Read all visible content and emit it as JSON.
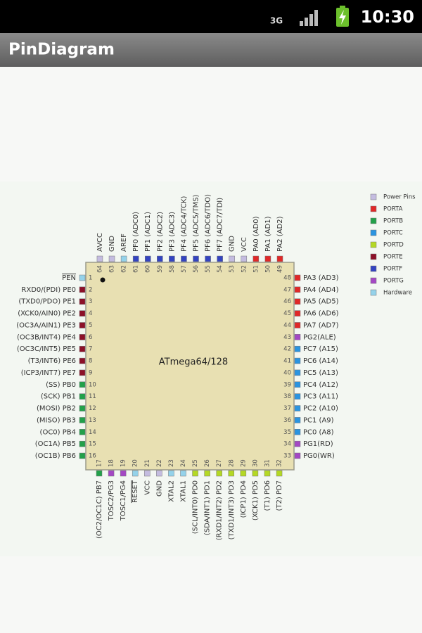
{
  "status_bar": {
    "network": "3G",
    "time": "10:30"
  },
  "app_bar": {
    "title": "PinDiagram"
  },
  "diagram": {
    "chip_label": "ATmega64/128",
    "legend": [
      {
        "name": "Power Pins",
        "color": "#c4bce0"
      },
      {
        "name": "PORTA",
        "color": "#e02828"
      },
      {
        "name": "PORTB",
        "color": "#22a04a"
      },
      {
        "name": "PORTC",
        "color": "#2a94e0"
      },
      {
        "name": "PORTD",
        "color": "#b4d824"
      },
      {
        "name": "PORTE",
        "color": "#8c1028"
      },
      {
        "name": "PORTF",
        "color": "#3444c0"
      },
      {
        "name": "PORTG",
        "color": "#a448c4"
      },
      {
        "name": "Hardware",
        "color": "#94d2ea"
      }
    ],
    "left_pins": [
      {
        "number": 1,
        "label": "PEN",
        "color": "#94d2ea"
      },
      {
        "number": 2,
        "label": "RXD0/(PDI) PE0",
        "color": "#8c1028"
      },
      {
        "number": 3,
        "label": "(TXD0/PDO) PE1",
        "color": "#8c1028"
      },
      {
        "number": 4,
        "label": "(XCK0/AIN0) PE2",
        "color": "#8c1028"
      },
      {
        "number": 5,
        "label": "(OC3A/AIN1) PE3",
        "color": "#8c1028"
      },
      {
        "number": 6,
        "label": "(OC3B/INT4) PE4",
        "color": "#8c1028"
      },
      {
        "number": 7,
        "label": "(OC3C/INT5) PE5",
        "color": "#8c1028"
      },
      {
        "number": 8,
        "label": "(T3/INT6) PE6",
        "color": "#8c1028"
      },
      {
        "number": 9,
        "label": "(ICP3/INT7) PE7",
        "color": "#8c1028"
      },
      {
        "number": 10,
        "label": "(SS) PB0",
        "color": "#22a04a"
      },
      {
        "number": 11,
        "label": "(SCK) PB1",
        "color": "#22a04a"
      },
      {
        "number": 12,
        "label": "(MOSI) PB2",
        "color": "#22a04a"
      },
      {
        "number": 13,
        "label": "(MISO) PB3",
        "color": "#22a04a"
      },
      {
        "number": 14,
        "label": "(OC0) PB4",
        "color": "#22a04a"
      },
      {
        "number": 15,
        "label": "(OC1A) PB5",
        "color": "#22a04a"
      },
      {
        "number": 16,
        "label": "(OC1B) PB6",
        "color": "#22a04a"
      }
    ],
    "bottom_pins": [
      {
        "number": 17,
        "label": "(OC2/OC1C) PB7",
        "color": "#22a04a"
      },
      {
        "number": 18,
        "label": "TOSC2/PG3",
        "color": "#a448c4"
      },
      {
        "number": 19,
        "label": "TOSC1/PG4",
        "color": "#a448c4"
      },
      {
        "number": 20,
        "label": "RESET",
        "color": "#94d2ea"
      },
      {
        "number": 21,
        "label": "VCC",
        "color": "#c4bce0"
      },
      {
        "number": 22,
        "label": "GND",
        "color": "#c4bce0"
      },
      {
        "number": 23,
        "label": "XTAL2",
        "color": "#94d2ea"
      },
      {
        "number": 24,
        "label": "XTAL1",
        "color": "#94d2ea"
      },
      {
        "number": 25,
        "label": "(SCL/INT0) PD0",
        "color": "#b4d824"
      },
      {
        "number": 26,
        "label": "(SDA/INT1) PD1",
        "color": "#b4d824"
      },
      {
        "number": 27,
        "label": "(RXD1/INT2) PD2",
        "color": "#b4d824"
      },
      {
        "number": 28,
        "label": "(TXD1/INT3) PD3",
        "color": "#b4d824"
      },
      {
        "number": 29,
        "label": "(ICP1) PD4",
        "color": "#b4d824"
      },
      {
        "number": 30,
        "label": "(XCK1) PD5",
        "color": "#b4d824"
      },
      {
        "number": 31,
        "label": "(T1) PD6",
        "color": "#b4d824"
      },
      {
        "number": 32,
        "label": "(T2) PD7",
        "color": "#b4d824"
      }
    ],
    "right_pins": [
      {
        "number": 33,
        "label": "PG0(WR)",
        "color": "#a448c4"
      },
      {
        "number": 34,
        "label": "PG1(RD)",
        "color": "#a448c4"
      },
      {
        "number": 35,
        "label": "PC0 (A8)",
        "color": "#2a94e0"
      },
      {
        "number": 36,
        "label": "PC1 (A9)",
        "color": "#2a94e0"
      },
      {
        "number": 37,
        "label": "PC2 (A10)",
        "color": "#2a94e0"
      },
      {
        "number": 38,
        "label": "PC3 (A11)",
        "color": "#2a94e0"
      },
      {
        "number": 39,
        "label": "PC4 (A12)",
        "color": "#2a94e0"
      },
      {
        "number": 40,
        "label": "PC5 (A13)",
        "color": "#2a94e0"
      },
      {
        "number": 41,
        "label": "PC6 (A14)",
        "color": "#2a94e0"
      },
      {
        "number": 42,
        "label": "PC7 (A15)",
        "color": "#2a94e0"
      },
      {
        "number": 43,
        "label": "PG2(ALE)",
        "color": "#a448c4"
      },
      {
        "number": 44,
        "label": "PA7 (AD7)",
        "color": "#e02828"
      },
      {
        "number": 45,
        "label": "PA6 (AD6)",
        "color": "#e02828"
      },
      {
        "number": 46,
        "label": "PA5 (AD5)",
        "color": "#e02828"
      },
      {
        "number": 47,
        "label": "PA4 (AD4)",
        "color": "#e02828"
      },
      {
        "number": 48,
        "label": "PA3 (AD3)",
        "color": "#e02828"
      }
    ],
    "top_pins": [
      {
        "number": 49,
        "label": "PA2 (AD2)",
        "color": "#e02828"
      },
      {
        "number": 50,
        "label": "PA1 (AD1)",
        "color": "#e02828"
      },
      {
        "number": 51,
        "label": "PA0 (AD0)",
        "color": "#e02828"
      },
      {
        "number": 52,
        "label": "VCC",
        "color": "#c4bce0"
      },
      {
        "number": 53,
        "label": "GND",
        "color": "#c4bce0"
      },
      {
        "number": 54,
        "label": "PF7 (ADC7/TDI)",
        "color": "#3444c0"
      },
      {
        "number": 55,
        "label": "PF6 (ADC6/TDO)",
        "color": "#3444c0"
      },
      {
        "number": 56,
        "label": "PF5 (ADC5/TMS)",
        "color": "#3444c0"
      },
      {
        "number": 57,
        "label": "PF4 (ADC4/TCK)",
        "color": "#3444c0"
      },
      {
        "number": 58,
        "label": "PF3 (ADC3)",
        "color": "#3444c0"
      },
      {
        "number": 59,
        "label": "PF2 (ADC2)",
        "color": "#3444c0"
      },
      {
        "number": 60,
        "label": "PF1 (ADC1)",
        "color": "#3444c0"
      },
      {
        "number": 61,
        "label": "PF0 (ADC0)",
        "color": "#3444c0"
      },
      {
        "number": 62,
        "label": "AREF",
        "color": "#94d2ea"
      },
      {
        "number": 63,
        "label": "GND",
        "color": "#c4bce0"
      },
      {
        "number": 64,
        "label": "AVCC",
        "color": "#c4bce0"
      }
    ]
  }
}
